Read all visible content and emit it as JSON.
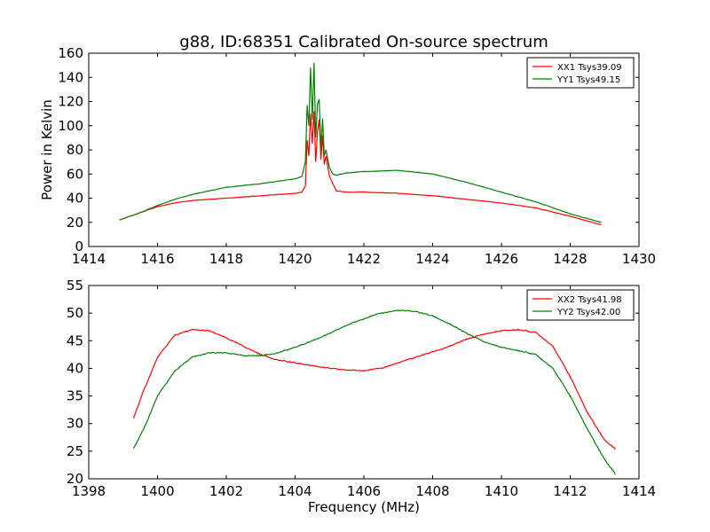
{
  "title": "g88, ID:68351 Calibrated On-source spectrum",
  "chart_data": [
    {
      "type": "line",
      "title": "g88, ID:68351 Calibrated On-source spectrum",
      "xlabel": "",
      "ylabel": "Power in Kelvin",
      "xlim": [
        1414,
        1430
      ],
      "ylim": [
        0,
        160
      ],
      "xticks": [
        1414,
        1416,
        1418,
        1420,
        1422,
        1424,
        1426,
        1428,
        1430
      ],
      "yticks": [
        0,
        20,
        40,
        60,
        80,
        100,
        120,
        140,
        160
      ],
      "grid": false,
      "legend": "top-right",
      "series": [
        {
          "name": "XX1 Tsys39.09",
          "color": "#ff0000",
          "x": [
            1414.9,
            1415.5,
            1416.0,
            1416.5,
            1417.0,
            1418.0,
            1419.0,
            1420.0,
            1420.2,
            1420.3,
            1420.35,
            1420.4,
            1420.45,
            1420.5,
            1420.55,
            1420.6,
            1420.65,
            1420.7,
            1420.75,
            1420.8,
            1420.85,
            1420.9,
            1421.0,
            1421.1,
            1421.2,
            1421.5,
            1422.0,
            1423.0,
            1424.0,
            1425.0,
            1426.0,
            1427.0,
            1428.0,
            1428.9
          ],
          "y": [
            22,
            28,
            33,
            36,
            38,
            40,
            42,
            44,
            45,
            50,
            88,
            75,
            110,
            85,
            112,
            70,
            95,
            105,
            72,
            92,
            68,
            75,
            58,
            52,
            46,
            45,
            45,
            44,
            42,
            39,
            36,
            32,
            25,
            18
          ]
        },
        {
          "name": "YY1 Tsys49.15",
          "color": "#008000",
          "x": [
            1414.9,
            1415.5,
            1416.0,
            1416.5,
            1417.0,
            1418.0,
            1419.0,
            1420.0,
            1420.2,
            1420.3,
            1420.35,
            1420.4,
            1420.45,
            1420.5,
            1420.55,
            1420.6,
            1420.65,
            1420.7,
            1420.75,
            1420.8,
            1420.85,
            1420.9,
            1421.0,
            1421.1,
            1421.2,
            1421.5,
            1422.0,
            1423.0,
            1424.0,
            1425.0,
            1426.0,
            1427.0,
            1428.0,
            1428.9
          ],
          "y": [
            22,
            28,
            34,
            39,
            43,
            49,
            52,
            56,
            58,
            70,
            117,
            100,
            148,
            105,
            152,
            90,
            118,
            122,
            80,
            106,
            75,
            80,
            65,
            60,
            59,
            61,
            62,
            63,
            60,
            53,
            45,
            37,
            27,
            20
          ]
        }
      ]
    },
    {
      "type": "line",
      "title": "",
      "xlabel": "Frequency (MHz)",
      "ylabel": "",
      "xlim": [
        1398,
        1414
      ],
      "ylim": [
        20,
        55
      ],
      "xticks": [
        1398,
        1400,
        1402,
        1404,
        1406,
        1408,
        1410,
        1412,
        1414
      ],
      "yticks": [
        20,
        25,
        30,
        35,
        40,
        45,
        50,
        55
      ],
      "grid": false,
      "legend": "top-right",
      "series": [
        {
          "name": "XX2 Tsys41.98",
          "color": "#ff0000",
          "x": [
            1399.3,
            1399.6,
            1400.0,
            1400.5,
            1401.0,
            1401.5,
            1402.0,
            1402.5,
            1403.0,
            1403.5,
            1404.0,
            1404.5,
            1405.0,
            1405.5,
            1406.0,
            1406.5,
            1407.0,
            1407.5,
            1408.0,
            1408.5,
            1409.0,
            1409.5,
            1410.0,
            1410.5,
            1411.0,
            1411.5,
            1412.0,
            1412.5,
            1413.0,
            1413.3
          ],
          "y": [
            31,
            36,
            42,
            46,
            47,
            46.8,
            45.5,
            44,
            42.5,
            41.5,
            41,
            40.5,
            40,
            39.7,
            39.6,
            40,
            41,
            42,
            43,
            44,
            45.3,
            46.2,
            46.8,
            47,
            46.5,
            44,
            38.5,
            32,
            27,
            25.5
          ]
        },
        {
          "name": "YY2 Tsys42.00",
          "color": "#008000",
          "x": [
            1399.3,
            1399.6,
            1400.0,
            1400.5,
            1401.0,
            1401.5,
            1402.0,
            1402.5,
            1403.0,
            1403.5,
            1404.0,
            1404.5,
            1405.0,
            1405.5,
            1406.0,
            1406.5,
            1407.0,
            1407.5,
            1408.0,
            1408.5,
            1409.0,
            1409.5,
            1410.0,
            1410.5,
            1411.0,
            1411.5,
            1412.0,
            1412.5,
            1413.0,
            1413.3
          ],
          "y": [
            25.5,
            29,
            35,
            39.5,
            42,
            42.8,
            42.8,
            42.3,
            42.3,
            42.8,
            43.8,
            45,
            46.3,
            47.8,
            49,
            50,
            50.5,
            50.3,
            49.5,
            48,
            46.3,
            44.8,
            43.8,
            43.2,
            42.5,
            40,
            35,
            29,
            23.5,
            21
          ]
        }
      ]
    }
  ]
}
